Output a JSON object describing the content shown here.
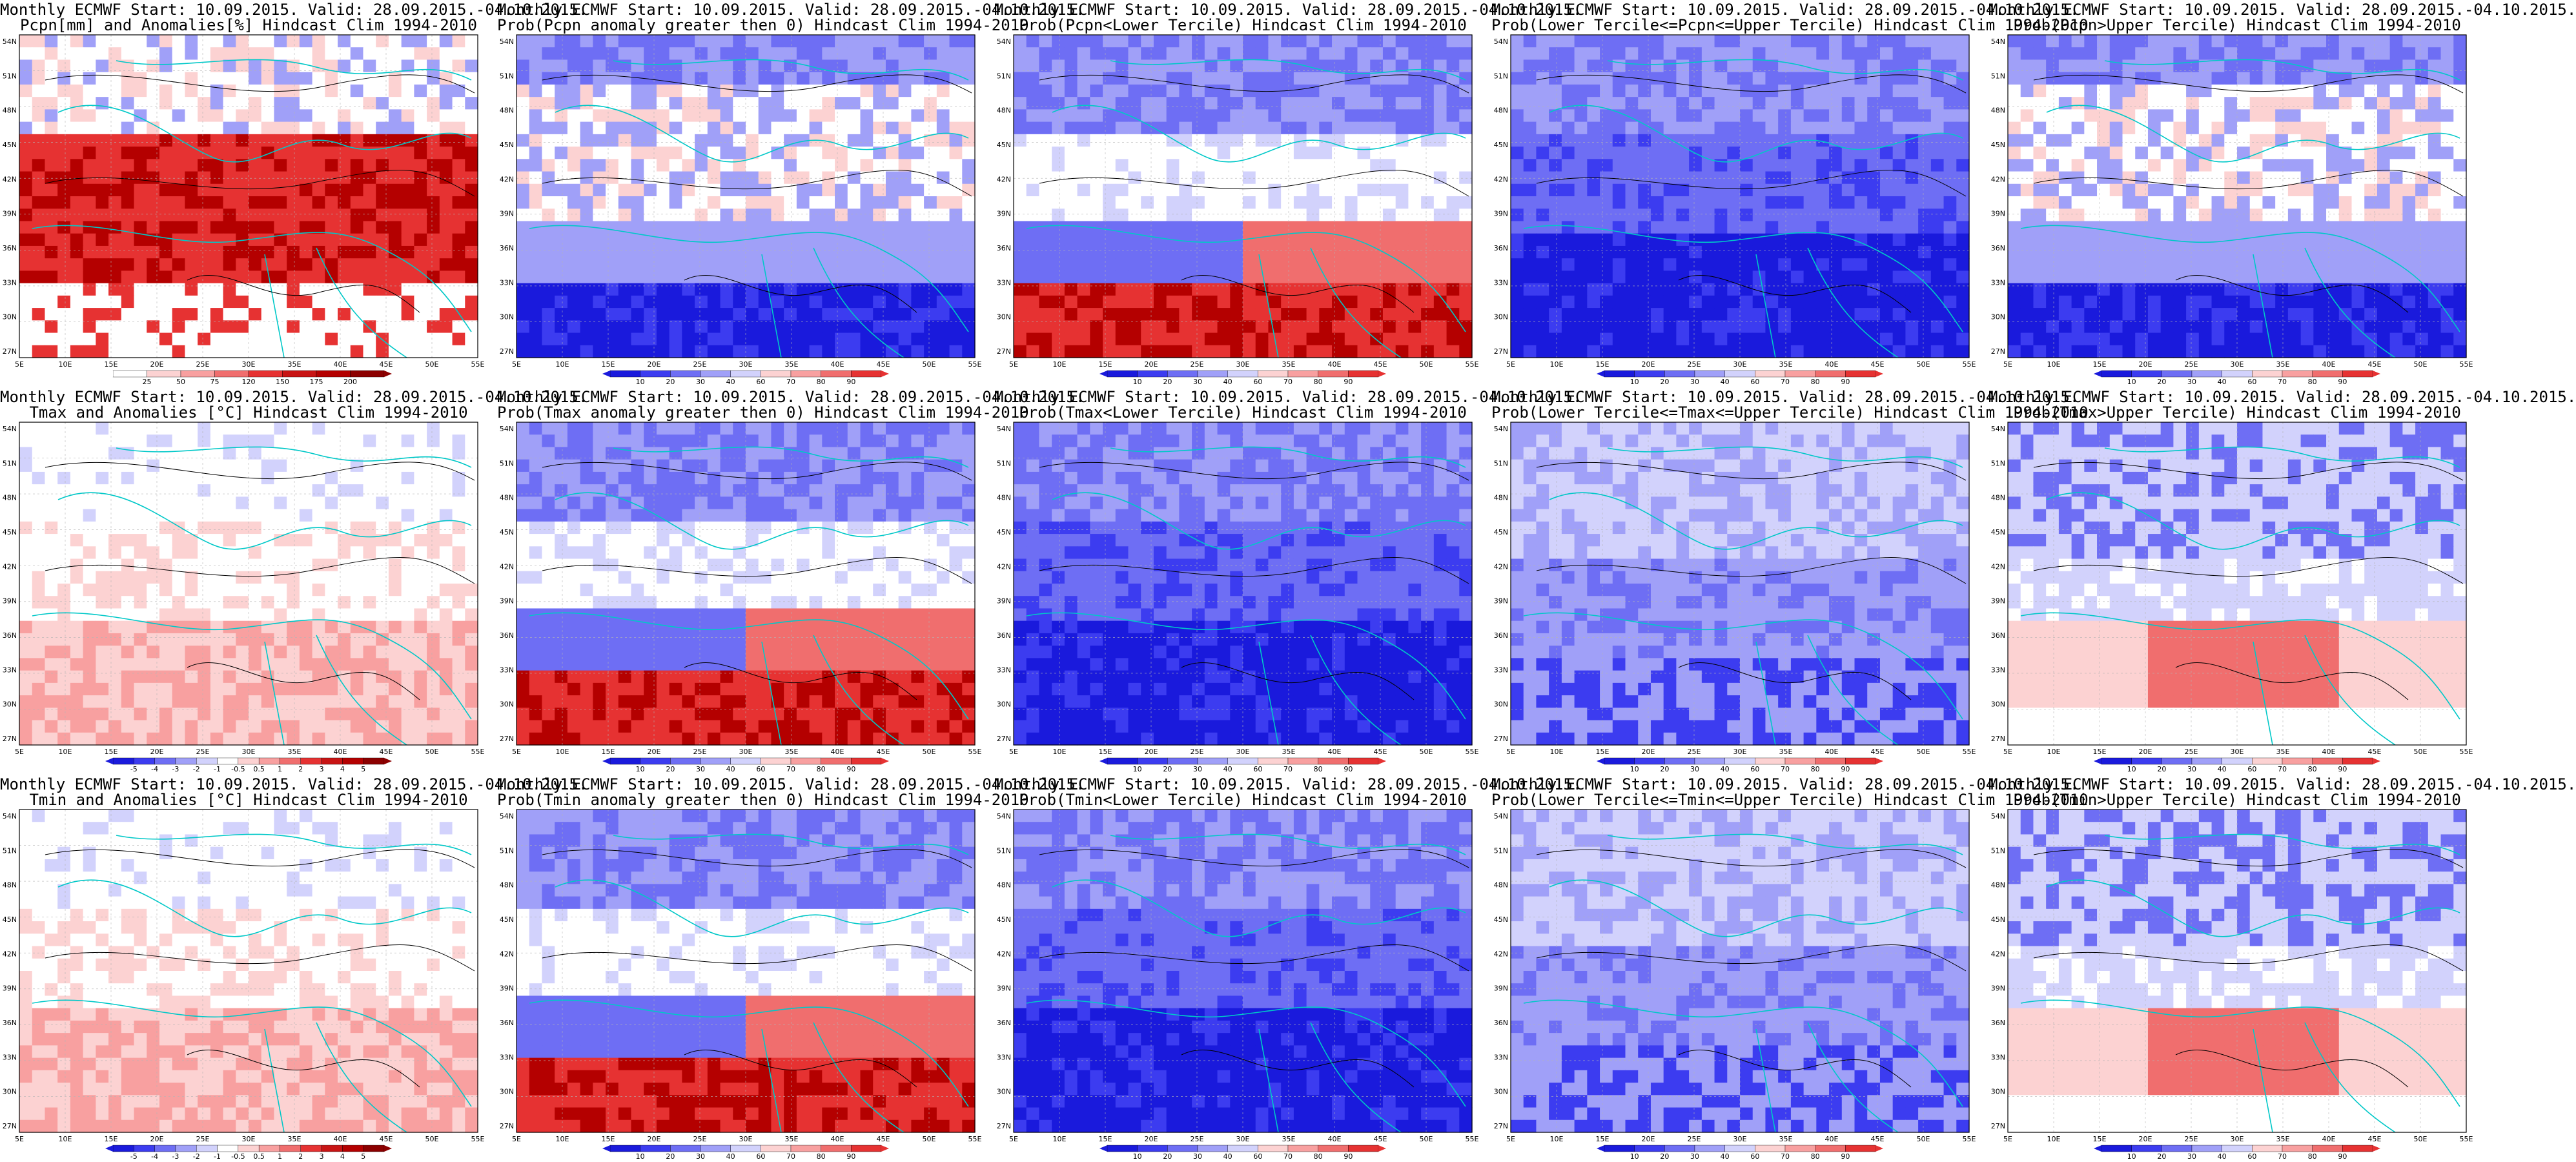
{
  "figure": {
    "panels": [
      {
        "title1": "Monthly ECMWF Start: 10.09.2015. Valid: 28.09.2015.-04.10.2015.",
        "title2": "Pcpn[mm] and Anomalies[%] Hindcast Clim 1994-2010",
        "style": "anom",
        "colorbar": [
          "25",
          "50",
          "75",
          "120",
          "150",
          "175",
          "200"
        ]
      },
      {
        "title1": "Monthly ECMWF Start: 10.09.2015. Valid: 28.09.2015.-04.10.2015.",
        "title2": "Prob(Pcpn anomaly greater then 0) Hindcast Clim 1994-2010",
        "style": "bluebottom",
        "colorbar": [
          "10",
          "20",
          "30",
          "40",
          "60",
          "70",
          "80",
          "90"
        ]
      },
      {
        "title1": "Monthly ECMWF Start: 10.09.2015. Valid: 28.09.2015.-04.10.2015.",
        "title2": "Prob(Pcpn<Lower Tercile) Hindcast Clim 1994-2010",
        "style": "redbottom",
        "colorbar": [
          "10",
          "20",
          "30",
          "40",
          "60",
          "70",
          "80",
          "90"
        ]
      },
      {
        "title1": "Monthly ECMWF Start: 10.09.2015. Valid: 28.09.2015.-04.10.2015.",
        "title2": "Prob(Lower Tercile<=Pcpn<=Upper Tercile) Hindcast Clim 1994-2010",
        "style": "blueall",
        "colorbar": [
          "10",
          "20",
          "30",
          "40",
          "60",
          "70",
          "80",
          "90"
        ]
      },
      {
        "title1": "Monthly ECMWF Start: 10.09.2015. Valid: 28.09.2015.-04.10.2015.",
        "title2": "Prob(Pcpn>Upper Tercile) Hindcast Clim 1994-2010",
        "style": "bluebottom",
        "colorbar": [
          "10",
          "20",
          "30",
          "40",
          "60",
          "70",
          "80",
          "90"
        ]
      },
      {
        "title1": "Monthly ECMWF Start: 10.09.2015. Valid: 28.09.2015.-04.10.2015.",
        "title2": "Tmax and Anomalies [°C] Hindcast Clim 1994-2010",
        "style": "lightred",
        "colorbar": [
          "-5",
          "-4",
          "-3",
          "-2",
          "-1",
          "-0.5",
          "0.5",
          "1",
          "2",
          "3",
          "4",
          "5"
        ]
      },
      {
        "title1": "Monthly ECMWF Start: 10.09.2015. Valid: 28.09.2015.-04.10.2015.",
        "title2": "Prob(Tmax anomaly greater then 0) Hindcast Clim 1994-2010",
        "style": "redbottom",
        "colorbar": [
          "10",
          "20",
          "30",
          "40",
          "60",
          "70",
          "80",
          "90"
        ]
      },
      {
        "title1": "Monthly ECMWF Start: 10.09.2015. Valid: 28.09.2015.-04.10.2015.",
        "title2": "Prob(Tmax<Lower Tercile) Hindcast Clim 1994-2010",
        "style": "blueall",
        "colorbar": [
          "10",
          "20",
          "30",
          "40",
          "60",
          "70",
          "80",
          "90"
        ]
      },
      {
        "title1": "Monthly ECMWF Start: 10.09.2015. Valid: 28.09.2015.-04.10.2015.",
        "title2": "Prob(Lower Tercile<=Tmax<=Upper Tercile) Hindcast Clim 1994-2010",
        "style": "bluemid",
        "colorbar": [
          "10",
          "20",
          "30",
          "40",
          "60",
          "70",
          "80",
          "90"
        ]
      },
      {
        "title1": "Monthly ECMWF Start: 10.09.2015. Valid: 28.09.2015.-04.10.2015.",
        "title2": "Prob(Tmax>Upper Tercile) Hindcast Clim 1994-2010",
        "style": "mixed",
        "colorbar": [
          "10",
          "20",
          "30",
          "40",
          "60",
          "70",
          "80",
          "90"
        ]
      },
      {
        "title1": "Monthly ECMWF Start: 10.09.2015. Valid: 28.09.2015.-04.10.2015.",
        "title2": "Tmin and Anomalies [°C] Hindcast Clim 1994-2010",
        "style": "lightred",
        "colorbar": [
          "-5",
          "-4",
          "-3",
          "-2",
          "-1",
          "-0.5",
          "0.5",
          "1",
          "2",
          "3",
          "4",
          "5"
        ]
      },
      {
        "title1": "Monthly ECMWF Start: 10.09.2015. Valid: 28.09.2015.-04.10.2015.",
        "title2": "Prob(Tmin anomaly greater then 0) Hindcast Clim 1994-2010",
        "style": "redbottom",
        "colorbar": [
          "10",
          "20",
          "30",
          "40",
          "60",
          "70",
          "80",
          "90"
        ]
      },
      {
        "title1": "Monthly ECMWF Start: 10.09.2015. Valid: 28.09.2015.-04.10.2015.",
        "title2": "Prob(Tmin<Lower Tercile) Hindcast Clim 1994-2010",
        "style": "blueall",
        "colorbar": [
          "10",
          "20",
          "30",
          "40",
          "60",
          "70",
          "80",
          "90"
        ]
      },
      {
        "title1": "Monthly ECMWF Start: 10.09.2015. Valid: 28.09.2015.-04.10.2015.",
        "title2": "Prob(Lower Tercile<=Tmin<=Upper Tercile) Hindcast Clim 1994-2010",
        "style": "bluemid",
        "colorbar": [
          "10",
          "20",
          "30",
          "40",
          "60",
          "70",
          "80",
          "90"
        ]
      },
      {
        "title1": "Monthly ECMWF Start: 10.09.2015. Valid: 28.09.2015.-04.10.2015.",
        "title2": "Prob(Tmin>Upper Tercile) Hindcast Clim 1994-2010",
        "style": "mixed",
        "colorbar": [
          "10",
          "20",
          "30",
          "40",
          "60",
          "70",
          "80",
          "90"
        ]
      }
    ],
    "lat_labels": [
      "54N",
      "51N",
      "48N",
      "45N",
      "42N",
      "39N",
      "36N",
      "33N",
      "30N",
      "27N"
    ],
    "lon_labels": [
      "5E",
      "10E",
      "15E",
      "20E",
      "25E",
      "30E",
      "35E",
      "40E",
      "45E",
      "50E",
      "55E"
    ],
    "colors": {
      "blue_scale": [
        "#1a1adc",
        "#3c3cf0",
        "#6e6ef4",
        "#a0a0f8",
        "#d2d2fc",
        "#ffffff",
        "#fcd2d2",
        "#f8a0a0",
        "#f06e6e",
        "#e63232",
        "#b40000"
      ],
      "coastline": "#00c8c8",
      "contour": "#000000",
      "grid": "#b4b4b4"
    }
  }
}
